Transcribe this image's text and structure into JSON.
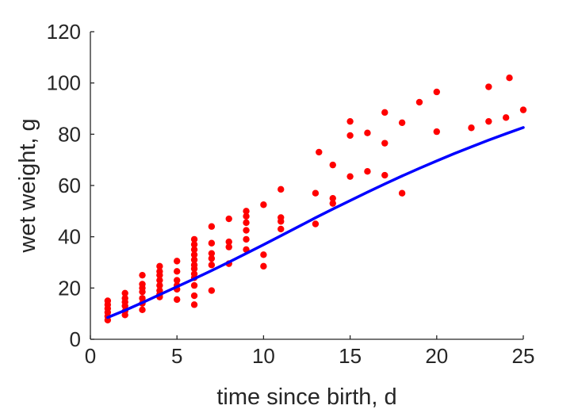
{
  "chart_data": {
    "type": "scatter",
    "title": "",
    "xlabel": "time since birth, d",
    "ylabel": "wet weight, g",
    "xlim": [
      0,
      25
    ],
    "ylim": [
      0,
      120
    ],
    "xticks": [
      0,
      5,
      10,
      15,
      20,
      25
    ],
    "yticks": [
      0,
      20,
      40,
      60,
      80,
      100,
      120
    ],
    "grid": false,
    "legend": "none",
    "series": [
      {
        "kind": "scatter",
        "color": "#ff0000",
        "points": [
          [
            1,
            7.5
          ],
          [
            1,
            9
          ],
          [
            1,
            10.5
          ],
          [
            1,
            12
          ],
          [
            1,
            13.5
          ],
          [
            1,
            15
          ],
          [
            2,
            9.5
          ],
          [
            2,
            11
          ],
          [
            2,
            13
          ],
          [
            2,
            14.5
          ],
          [
            2,
            16
          ],
          [
            2,
            18
          ],
          [
            3,
            11.5
          ],
          [
            3,
            14
          ],
          [
            3,
            16
          ],
          [
            3,
            18.5
          ],
          [
            3,
            20
          ],
          [
            3,
            21.5
          ],
          [
            3,
            25
          ],
          [
            4,
            16.5
          ],
          [
            4,
            17.5
          ],
          [
            4,
            19
          ],
          [
            4,
            21
          ],
          [
            4,
            23
          ],
          [
            4,
            25
          ],
          [
            4,
            26.5
          ],
          [
            4,
            28.5
          ],
          [
            5,
            15.5
          ],
          [
            5,
            19.5
          ],
          [
            5,
            21
          ],
          [
            5,
            23
          ],
          [
            5,
            26.5
          ],
          [
            5,
            30.5
          ],
          [
            6,
            13.5
          ],
          [
            6,
            17
          ],
          [
            6,
            21
          ],
          [
            6,
            24
          ],
          [
            6,
            25.5
          ],
          [
            6,
            27.5
          ],
          [
            6,
            29
          ],
          [
            6,
            31
          ],
          [
            6,
            33
          ],
          [
            6,
            35
          ],
          [
            6,
            37
          ],
          [
            6,
            39
          ],
          [
            7,
            19
          ],
          [
            7,
            29
          ],
          [
            7,
            31.5
          ],
          [
            7,
            33.5
          ],
          [
            7,
            37.5
          ],
          [
            7,
            44
          ],
          [
            8,
            29.5
          ],
          [
            8,
            36
          ],
          [
            8,
            38
          ],
          [
            8,
            47
          ],
          [
            9,
            35
          ],
          [
            9,
            39
          ],
          [
            9,
            42.5
          ],
          [
            9,
            45.5
          ],
          [
            9,
            48
          ],
          [
            9,
            50
          ],
          [
            10,
            28.5
          ],
          [
            10,
            33
          ],
          [
            10,
            52.5
          ],
          [
            11,
            43
          ],
          [
            11,
            46
          ],
          [
            11,
            47.5
          ],
          [
            11,
            58.5
          ],
          [
            13,
            45
          ],
          [
            13,
            57
          ],
          [
            13.2,
            73
          ],
          [
            14,
            53
          ],
          [
            14,
            55
          ],
          [
            14,
            68
          ],
          [
            15,
            63.5
          ],
          [
            15,
            79.5
          ],
          [
            15,
            85
          ],
          [
            16,
            65.5
          ],
          [
            16,
            80.5
          ],
          [
            17,
            64
          ],
          [
            17,
            76.5
          ],
          [
            17,
            88.5
          ],
          [
            18,
            57
          ],
          [
            18,
            84.5
          ],
          [
            19,
            92.5
          ],
          [
            20,
            81
          ],
          [
            20,
            96.5
          ],
          [
            22,
            82.5
          ],
          [
            23,
            85
          ],
          [
            23,
            98.5
          ],
          [
            24,
            86.5
          ],
          [
            24.2,
            102
          ],
          [
            25,
            89.5
          ]
        ]
      },
      {
        "kind": "line",
        "color": "#0000ff",
        "x": [
          1,
          2,
          3,
          4,
          5,
          6,
          7,
          8,
          9,
          10,
          11,
          12,
          13,
          14,
          15,
          16,
          17,
          18,
          19,
          20,
          21,
          22,
          23,
          24,
          25
        ],
        "y": [
          8.5,
          11.3,
          14.3,
          17.4,
          20.5,
          23.6,
          26.8,
          30.1,
          33.5,
          36.9,
          40.4,
          43.9,
          47.4,
          50.8,
          54.1,
          57.4,
          60.6,
          63.7,
          66.7,
          69.6,
          72.4,
          75.1,
          77.7,
          80.2,
          82.6
        ]
      }
    ]
  }
}
